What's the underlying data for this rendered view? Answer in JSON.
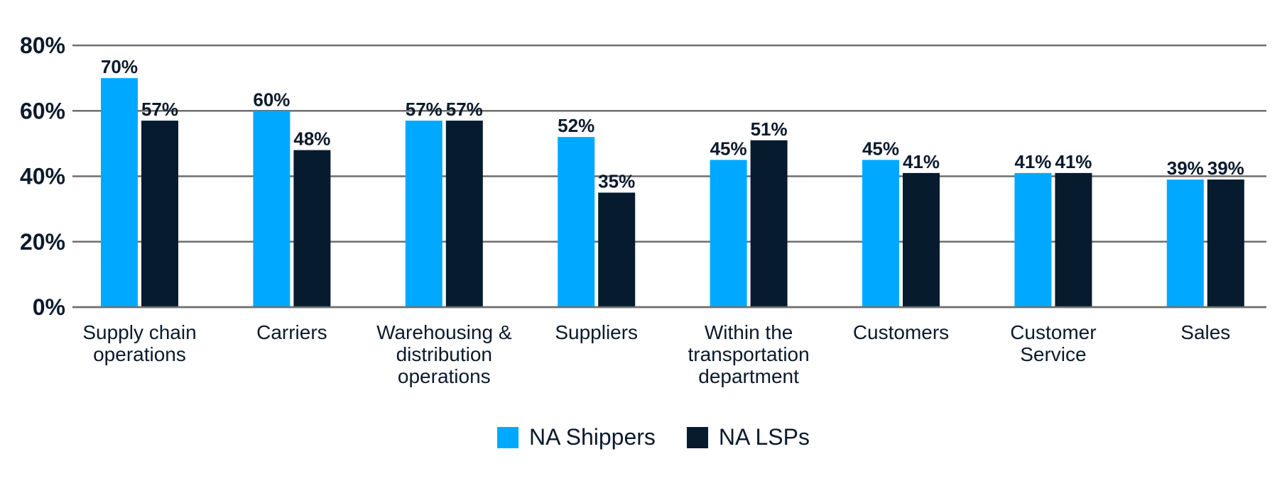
{
  "chart_data": {
    "type": "bar",
    "title": "",
    "xlabel": "",
    "ylabel": "",
    "ylim": [
      0,
      80
    ],
    "yticks": [
      0,
      20,
      40,
      60,
      80
    ],
    "ytick_labels": [
      "0%",
      "20%",
      "40%",
      "60%",
      "80%"
    ],
    "grid": true,
    "legend_position": "bottom-center",
    "categories": [
      [
        "Supply chain",
        "operations"
      ],
      [
        "Carriers"
      ],
      [
        "Warehousing &",
        "distribution",
        "operations"
      ],
      [
        "Suppliers"
      ],
      [
        "Within the",
        "transportation",
        "department"
      ],
      [
        "Customers"
      ],
      [
        "Customer",
        "Service"
      ],
      [
        "Sales"
      ]
    ],
    "series": [
      {
        "name": "NA Shippers",
        "color": "#00A9FF",
        "values": [
          70,
          60,
          57,
          52,
          45,
          45,
          41,
          39
        ],
        "labels": [
          "70%",
          "60%",
          "57%",
          "52%",
          "45%",
          "45%",
          "41%",
          "39%"
        ]
      },
      {
        "name": "NA LSPs",
        "color": "#061B2E",
        "values": [
          57,
          48,
          57,
          35,
          51,
          41,
          41,
          39
        ],
        "labels": [
          "57%",
          "48%",
          "57%",
          "35%",
          "51%",
          "41%",
          "41%",
          "39%"
        ]
      }
    ]
  }
}
